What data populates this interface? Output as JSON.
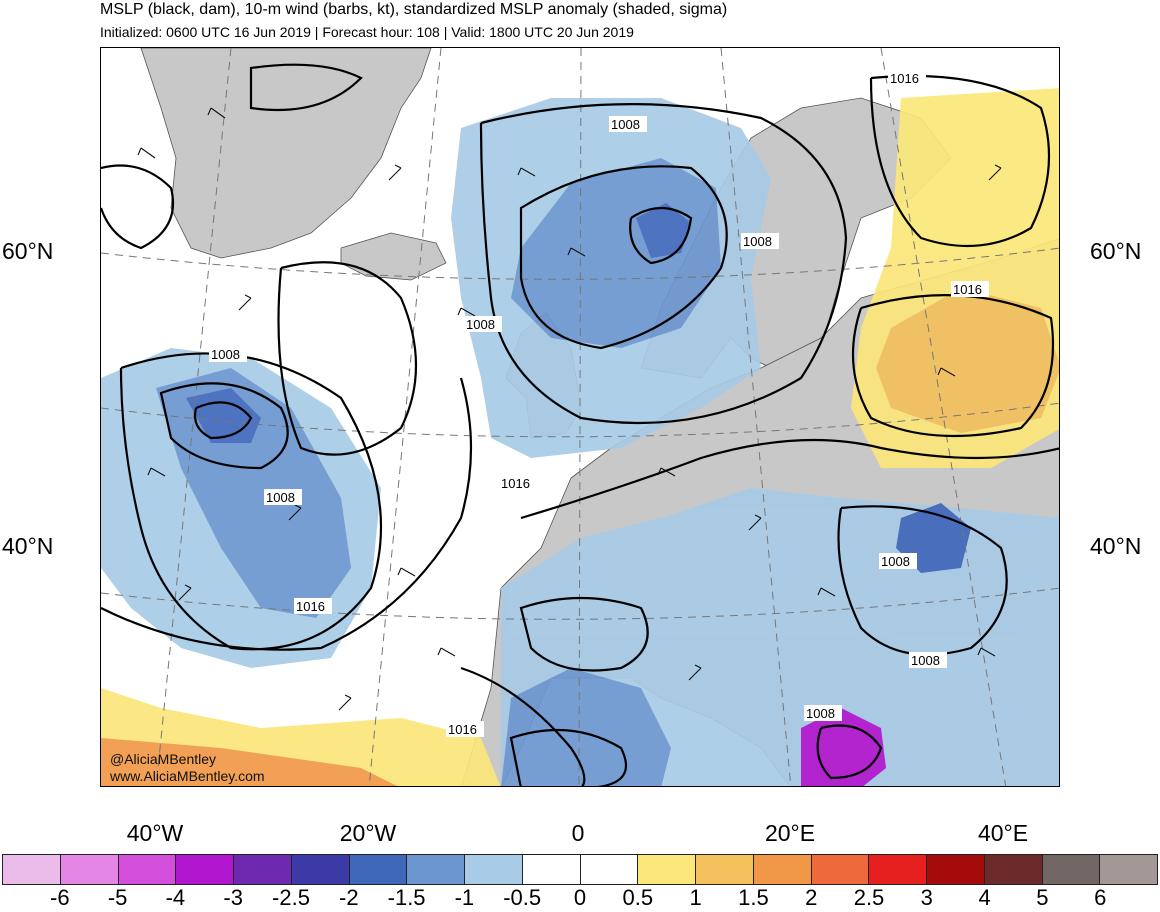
{
  "header": {
    "title": "MSLP (black, dam), 10-m wind (barbs, kt), standardized MSLP anomaly (shaded, sigma)",
    "subtitle": "Initialized: 0600 UTC 16 Jun 2019 | Forecast hour: 108 | Valid: 1800 UTC 20 Jun 2019"
  },
  "axes": {
    "lat_left": [
      "60°N",
      "40°N"
    ],
    "lat_right": [
      "60°N",
      "40°N"
    ],
    "lon_bottom": [
      "40°W",
      "20°W",
      "0",
      "20°E",
      "40°E"
    ]
  },
  "contours": {
    "labels": [
      "1016",
      "1008",
      "1008",
      "1008",
      "1016",
      "1008",
      "1016",
      "1008",
      "1016",
      "1008",
      "1008",
      "1008",
      "1016"
    ]
  },
  "credit": {
    "handle": "@AliciaMBentley",
    "site": "www.AliciaMBentley.com"
  },
  "colorbar": {
    "colors": [
      "#ebbbea",
      "#e486e6",
      "#d54fdd",
      "#b017cf",
      "#6d2ab1",
      "#3b3aa6",
      "#3f68bb",
      "#6c96cf",
      "#a8cbe7",
      "#ffffff",
      "#ffffff",
      "#fbe77a",
      "#f4c15c",
      "#f09847",
      "#ee6a3c",
      "#e6201f",
      "#a40c0c",
      "#6c2a2a",
      "#726664",
      "#a49896"
    ],
    "tick_labels": [
      "-6",
      "-5",
      "-4",
      "-3",
      "-2.5",
      "-2",
      "-1.5",
      "-1",
      "-0.5",
      "0",
      "0.5",
      "1",
      "1.5",
      "2",
      "2.5",
      "3",
      "4",
      "5",
      "6"
    ]
  },
  "palette": {
    "land": "#c8c8c8",
    "contour": "#000000",
    "grid": "#777777"
  }
}
